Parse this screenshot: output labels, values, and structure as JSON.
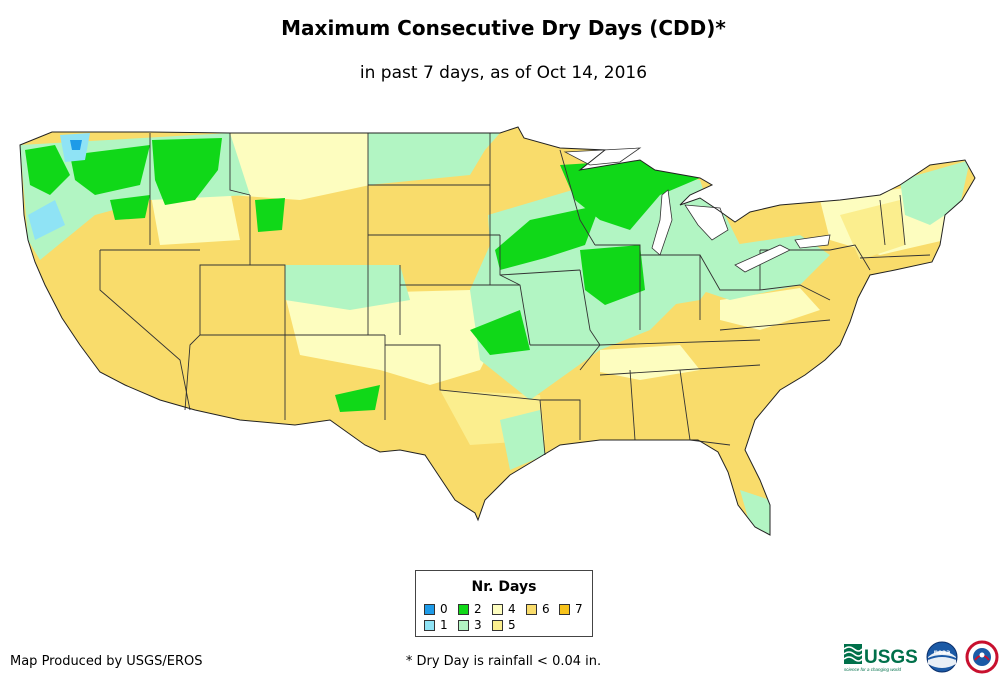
{
  "title": "Maximum Consecutive Dry Days (CDD)*",
  "subtitle": "in past 7 days, as of Oct 14, 2016",
  "legend": {
    "title": "Nr. Days",
    "items": [
      {
        "label": "0",
        "color": "#1e9be8"
      },
      {
        "label": "1",
        "color": "#8fe3f5"
      },
      {
        "label": "2",
        "color": "#10d818"
      },
      {
        "label": "3",
        "color": "#b2f5c3"
      },
      {
        "label": "4",
        "color": "#fdfdbf"
      },
      {
        "label": "5",
        "color": "#fbee8e"
      },
      {
        "label": "6",
        "color": "#f9dc6b"
      },
      {
        "label": "7",
        "color": "#f7c31b"
      }
    ]
  },
  "footer": {
    "credit": "Map Produced by USGS/EROS",
    "note": "* Dry Day is rainfall < 0.04 in."
  },
  "logos": {
    "usgs": "USGS",
    "usgs_tagline": "science for a changing world",
    "noaa": "noaa"
  }
}
